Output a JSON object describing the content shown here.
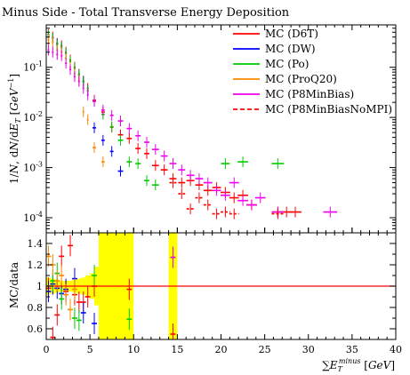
{
  "chart_data": {
    "type": "scatter",
    "title": "Minus Side - Total Transverse Energy Deposition",
    "xlabel": "∑E_T^minus [GeV]",
    "ylabel": "1/N, dN/dE_T [GeV^-1]",
    "ratio_ylabel": "MC/data",
    "xlim": [
      0,
      40
    ],
    "ylim": [
      5e-05,
      0.7
    ],
    "yscale": "log",
    "ratio_ylim": [
      0.5,
      1.5
    ],
    "x_ticks": [
      "0",
      "5",
      "10",
      "15",
      "20",
      "25",
      "30",
      "35",
      "40"
    ],
    "y_ticks": [
      "10^-4",
      "10^-3",
      "10^-2",
      "10^-1"
    ],
    "ratio_ticks": [
      "0.6",
      "0.8",
      "1",
      "1.2",
      "1.4"
    ],
    "legend_position": "top-right",
    "data_band": {
      "color": "#ffff00",
      "bins": [
        {
          "x0": 0,
          "x1": 0.5,
          "lo": 0.92,
          "hi": 1.08
        },
        {
          "x0": 0.5,
          "x1": 1,
          "lo": 0.93,
          "hi": 1.07
        },
        {
          "x0": 1,
          "x1": 1.5,
          "lo": 0.94,
          "hi": 1.06
        },
        {
          "x0": 1.5,
          "x1": 2,
          "lo": 0.95,
          "hi": 1.05
        },
        {
          "x0": 2,
          "x1": 2.5,
          "lo": 0.95,
          "hi": 1.05
        },
        {
          "x0": 2.5,
          "x1": 3,
          "lo": 0.95,
          "hi": 1.05
        },
        {
          "x0": 3,
          "x1": 3.5,
          "lo": 0.94,
          "hi": 1.06
        },
        {
          "x0": 3.5,
          "x1": 4,
          "lo": 0.93,
          "hi": 1.07
        },
        {
          "x0": 4,
          "x1": 4.5,
          "lo": 0.92,
          "hi": 1.08
        },
        {
          "x0": 4.5,
          "x1": 5,
          "lo": 0.9,
          "hi": 1.1
        },
        {
          "x0": 5,
          "x1": 5.5,
          "lo": 0.88,
          "hi": 1.12
        },
        {
          "x0": 5.5,
          "x1": 6,
          "lo": 0.82,
          "hi": 1.18
        },
        {
          "x0": 6,
          "x1": 10,
          "lo": 0.5,
          "hi": 1.5
        },
        {
          "x0": 14,
          "x1": 15,
          "lo": 0.5,
          "hi": 1.5
        }
      ]
    },
    "series": [
      {
        "name": "MC (D6T)",
        "color": "#ff0000",
        "dashed": false,
        "points": [
          [
            0.25,
            0.45,
            0.1
          ],
          [
            0.75,
            0.4,
            0.1
          ],
          [
            1.25,
            0.3,
            0.1
          ],
          [
            1.75,
            0.27,
            0.1
          ],
          [
            2.25,
            0.2,
            0.1
          ],
          [
            2.75,
            0.14,
            0.1
          ],
          [
            3.25,
            0.1,
            0.1
          ],
          [
            3.75,
            0.073,
            0.1
          ],
          [
            4.25,
            0.053,
            0.1
          ],
          [
            4.75,
            0.038,
            0.1
          ],
          [
            5.5,
            0.022,
            0.2
          ],
          [
            6.5,
            0.0128,
            0.2
          ],
          [
            7.5,
            0.0064,
            0.2
          ],
          [
            8.5,
            0.0045,
            0.3
          ],
          [
            9.5,
            0.0038,
            0.3
          ],
          [
            10.5,
            0.0024,
            0.3
          ],
          [
            11.5,
            0.0019,
            0.3
          ],
          [
            12.5,
            0.0011,
            0.4
          ],
          [
            13.5,
            0.0009,
            0.4
          ],
          [
            14.5,
            0.0006,
            0.4
          ],
          [
            15.5,
            0.0005,
            0.4
          ],
          [
            16.5,
            0.00055,
            0.45
          ],
          [
            17.5,
            0.00045,
            0.45
          ],
          [
            18.5,
            0.00035,
            0.5
          ],
          [
            19.5,
            0.0004,
            0.5
          ],
          [
            20.5,
            0.00032,
            0.55
          ],
          [
            21.5,
            0.00025,
            0.55
          ],
          [
            22.5,
            0.00028,
            0.6
          ],
          [
            23.5,
            0.00018,
            0.6
          ],
          [
            26.5,
            0.00013,
            0.7
          ],
          [
            27.5,
            0.00013,
            0.7
          ],
          [
            28.5,
            0.00013,
            0.7
          ]
        ],
        "ratio": [
          [
            0.25,
            0.98
          ],
          [
            0.75,
            0.52
          ],
          [
            1.25,
            0.73
          ],
          [
            1.75,
            1.28
          ],
          [
            2.25,
            0.95
          ],
          [
            2.75,
            1.38
          ],
          [
            3.25,
            0.92
          ],
          [
            3.75,
            0.85
          ],
          [
            4.25,
            0.85
          ],
          [
            4.75,
            0.9
          ],
          [
            5.5,
            1.0
          ],
          [
            9.5,
            0.97
          ],
          [
            14.5,
            0.55
          ]
        ]
      },
      {
        "name": "MC (DW)",
        "color": "#0000ff",
        "dashed": false,
        "points": [
          [
            0.25,
            0.43,
            0.1
          ],
          [
            0.75,
            0.38,
            0.1
          ],
          [
            1.25,
            0.29,
            0.1
          ],
          [
            1.75,
            0.25,
            0.1
          ],
          [
            2.25,
            0.19,
            0.1
          ],
          [
            2.75,
            0.13,
            0.1
          ],
          [
            3.25,
            0.095,
            0.1
          ],
          [
            3.75,
            0.07,
            0.1
          ],
          [
            4.25,
            0.052,
            0.1
          ],
          [
            4.75,
            0.034,
            0.1
          ],
          [
            5.5,
            0.0062,
            0.2
          ],
          [
            6.5,
            0.0035,
            0.2
          ],
          [
            7.5,
            0.0021,
            0.2
          ],
          [
            8.5,
            0.00085,
            0.3
          ]
        ],
        "ratio": [
          [
            0.25,
            0.95
          ],
          [
            0.75,
            1.02
          ],
          [
            1.25,
            0.98
          ],
          [
            1.75,
            0.93
          ],
          [
            2.25,
            0.97
          ],
          [
            3.25,
            1.07
          ],
          [
            4.25,
            0.75
          ],
          [
            5.5,
            0.65
          ]
        ]
      },
      {
        "name": "MC (Po)",
        "color": "#00cc00",
        "dashed": false,
        "points": [
          [
            0.25,
            0.43,
            0.1
          ],
          [
            0.75,
            0.38,
            0.1
          ],
          [
            1.25,
            0.28,
            0.1
          ],
          [
            1.75,
            0.25,
            0.1
          ],
          [
            2.25,
            0.19,
            0.1
          ],
          [
            2.75,
            0.13,
            0.1
          ],
          [
            3.25,
            0.096,
            0.1
          ],
          [
            3.75,
            0.07,
            0.1
          ],
          [
            4.25,
            0.051,
            0.1
          ],
          [
            4.75,
            0.034,
            0.1
          ],
          [
            5.5,
            0.021,
            0.2
          ],
          [
            6.5,
            0.0115,
            0.2
          ],
          [
            7.5,
            0.0065,
            0.2
          ],
          [
            8.5,
            0.0035,
            0.3
          ],
          [
            9.5,
            0.0013,
            0.3
          ],
          [
            10.5,
            0.0012,
            0.3
          ],
          [
            11.5,
            0.00055,
            0.3
          ],
          [
            12.5,
            0.00045,
            0.4
          ],
          [
            20.5,
            0.0012,
            0.5
          ],
          [
            22.5,
            0.0013,
            0.6
          ],
          [
            26.5,
            0.0012,
            0.7
          ]
        ],
        "ratio": [
          [
            0.75,
            1.05
          ],
          [
            1.25,
            1.12
          ],
          [
            1.75,
            0.88
          ],
          [
            3.25,
            0.7
          ],
          [
            3.75,
            0.68
          ],
          [
            5.5,
            1.1
          ],
          [
            9.5,
            0.69
          ]
        ]
      },
      {
        "name": "MC (ProQ20)",
        "color": "#ff8800",
        "dashed": false,
        "points": [
          [
            0.25,
            0.35,
            0.1
          ],
          [
            0.75,
            0.32,
            0.1
          ],
          [
            1.25,
            0.22,
            0.1
          ],
          [
            1.75,
            0.2,
            0.1
          ],
          [
            2.25,
            0.15,
            0.1
          ],
          [
            2.75,
            0.1,
            0.1
          ],
          [
            3.25,
            0.075,
            0.1
          ],
          [
            3.75,
            0.055,
            0.1
          ],
          [
            4.25,
            0.013,
            0.1
          ],
          [
            4.75,
            0.009,
            0.1
          ],
          [
            5.5,
            0.0025,
            0.2
          ],
          [
            6.5,
            0.0013,
            0.2
          ]
        ],
        "ratio": [
          [
            0.25,
            1.28
          ],
          [
            0.75,
            1.2
          ],
          [
            1.25,
            1.05
          ],
          [
            1.75,
            1.1
          ],
          [
            2.25,
            0.92
          ],
          [
            2.75,
            0.78
          ],
          [
            3.25,
            0.97
          ]
        ]
      },
      {
        "name": "MC (P8MinBias)",
        "color": "#ee00ee",
        "dashed": false,
        "points": [
          [
            0.25,
            0.22,
            0.1
          ],
          [
            0.75,
            0.2,
            0.1
          ],
          [
            1.25,
            0.18,
            0.1
          ],
          [
            1.75,
            0.17,
            0.1
          ],
          [
            2.25,
            0.12,
            0.1
          ],
          [
            2.75,
            0.09,
            0.1
          ],
          [
            3.25,
            0.065,
            0.1
          ],
          [
            3.75,
            0.052,
            0.1
          ],
          [
            4.25,
            0.038,
            0.1
          ],
          [
            4.75,
            0.028,
            0.1
          ],
          [
            5.5,
            0.021,
            0.2
          ],
          [
            6.5,
            0.014,
            0.2
          ],
          [
            7.5,
            0.011,
            0.2
          ],
          [
            8.5,
            0.0085,
            0.3
          ],
          [
            9.5,
            0.006,
            0.3
          ],
          [
            10.5,
            0.0043,
            0.3
          ],
          [
            11.5,
            0.0032,
            0.3
          ],
          [
            12.5,
            0.0023,
            0.4
          ],
          [
            13.5,
            0.0017,
            0.4
          ],
          [
            14.5,
            0.0012,
            0.4
          ],
          [
            15.5,
            0.0009,
            0.4
          ],
          [
            16.5,
            0.0007,
            0.45
          ],
          [
            17.5,
            0.0006,
            0.45
          ],
          [
            18.5,
            0.0005,
            0.5
          ],
          [
            19.5,
            0.00035,
            0.5
          ],
          [
            20.5,
            0.00028,
            0.55
          ],
          [
            21.5,
            0.0005,
            0.55
          ],
          [
            22.5,
            0.00022,
            0.6
          ],
          [
            23.5,
            0.00018,
            0.6
          ],
          [
            24.5,
            0.00025,
            0.6
          ],
          [
            26.5,
            0.00013,
            0.7
          ],
          [
            32.5,
            0.00013,
            0.8
          ]
        ],
        "ratio": [
          [
            14.5,
            1.27
          ]
        ]
      },
      {
        "name": "MC (P8MinBiasNoMPI)",
        "color": "#ff0000",
        "dashed": true,
        "points": [
          [
            14.5,
            0.0005,
            0.4
          ],
          [
            15.5,
            0.0003,
            0.4
          ],
          [
            16.5,
            0.00015,
            0.45
          ],
          [
            17.5,
            0.00025,
            0.45
          ],
          [
            18.5,
            0.00018,
            0.5
          ],
          [
            19.5,
            0.00012,
            0.5
          ],
          [
            20.5,
            0.00013,
            0.55
          ],
          [
            21.5,
            0.00012,
            0.55
          ],
          [
            26.5,
            0.00012,
            0.7
          ]
        ],
        "ratio": []
      }
    ]
  }
}
